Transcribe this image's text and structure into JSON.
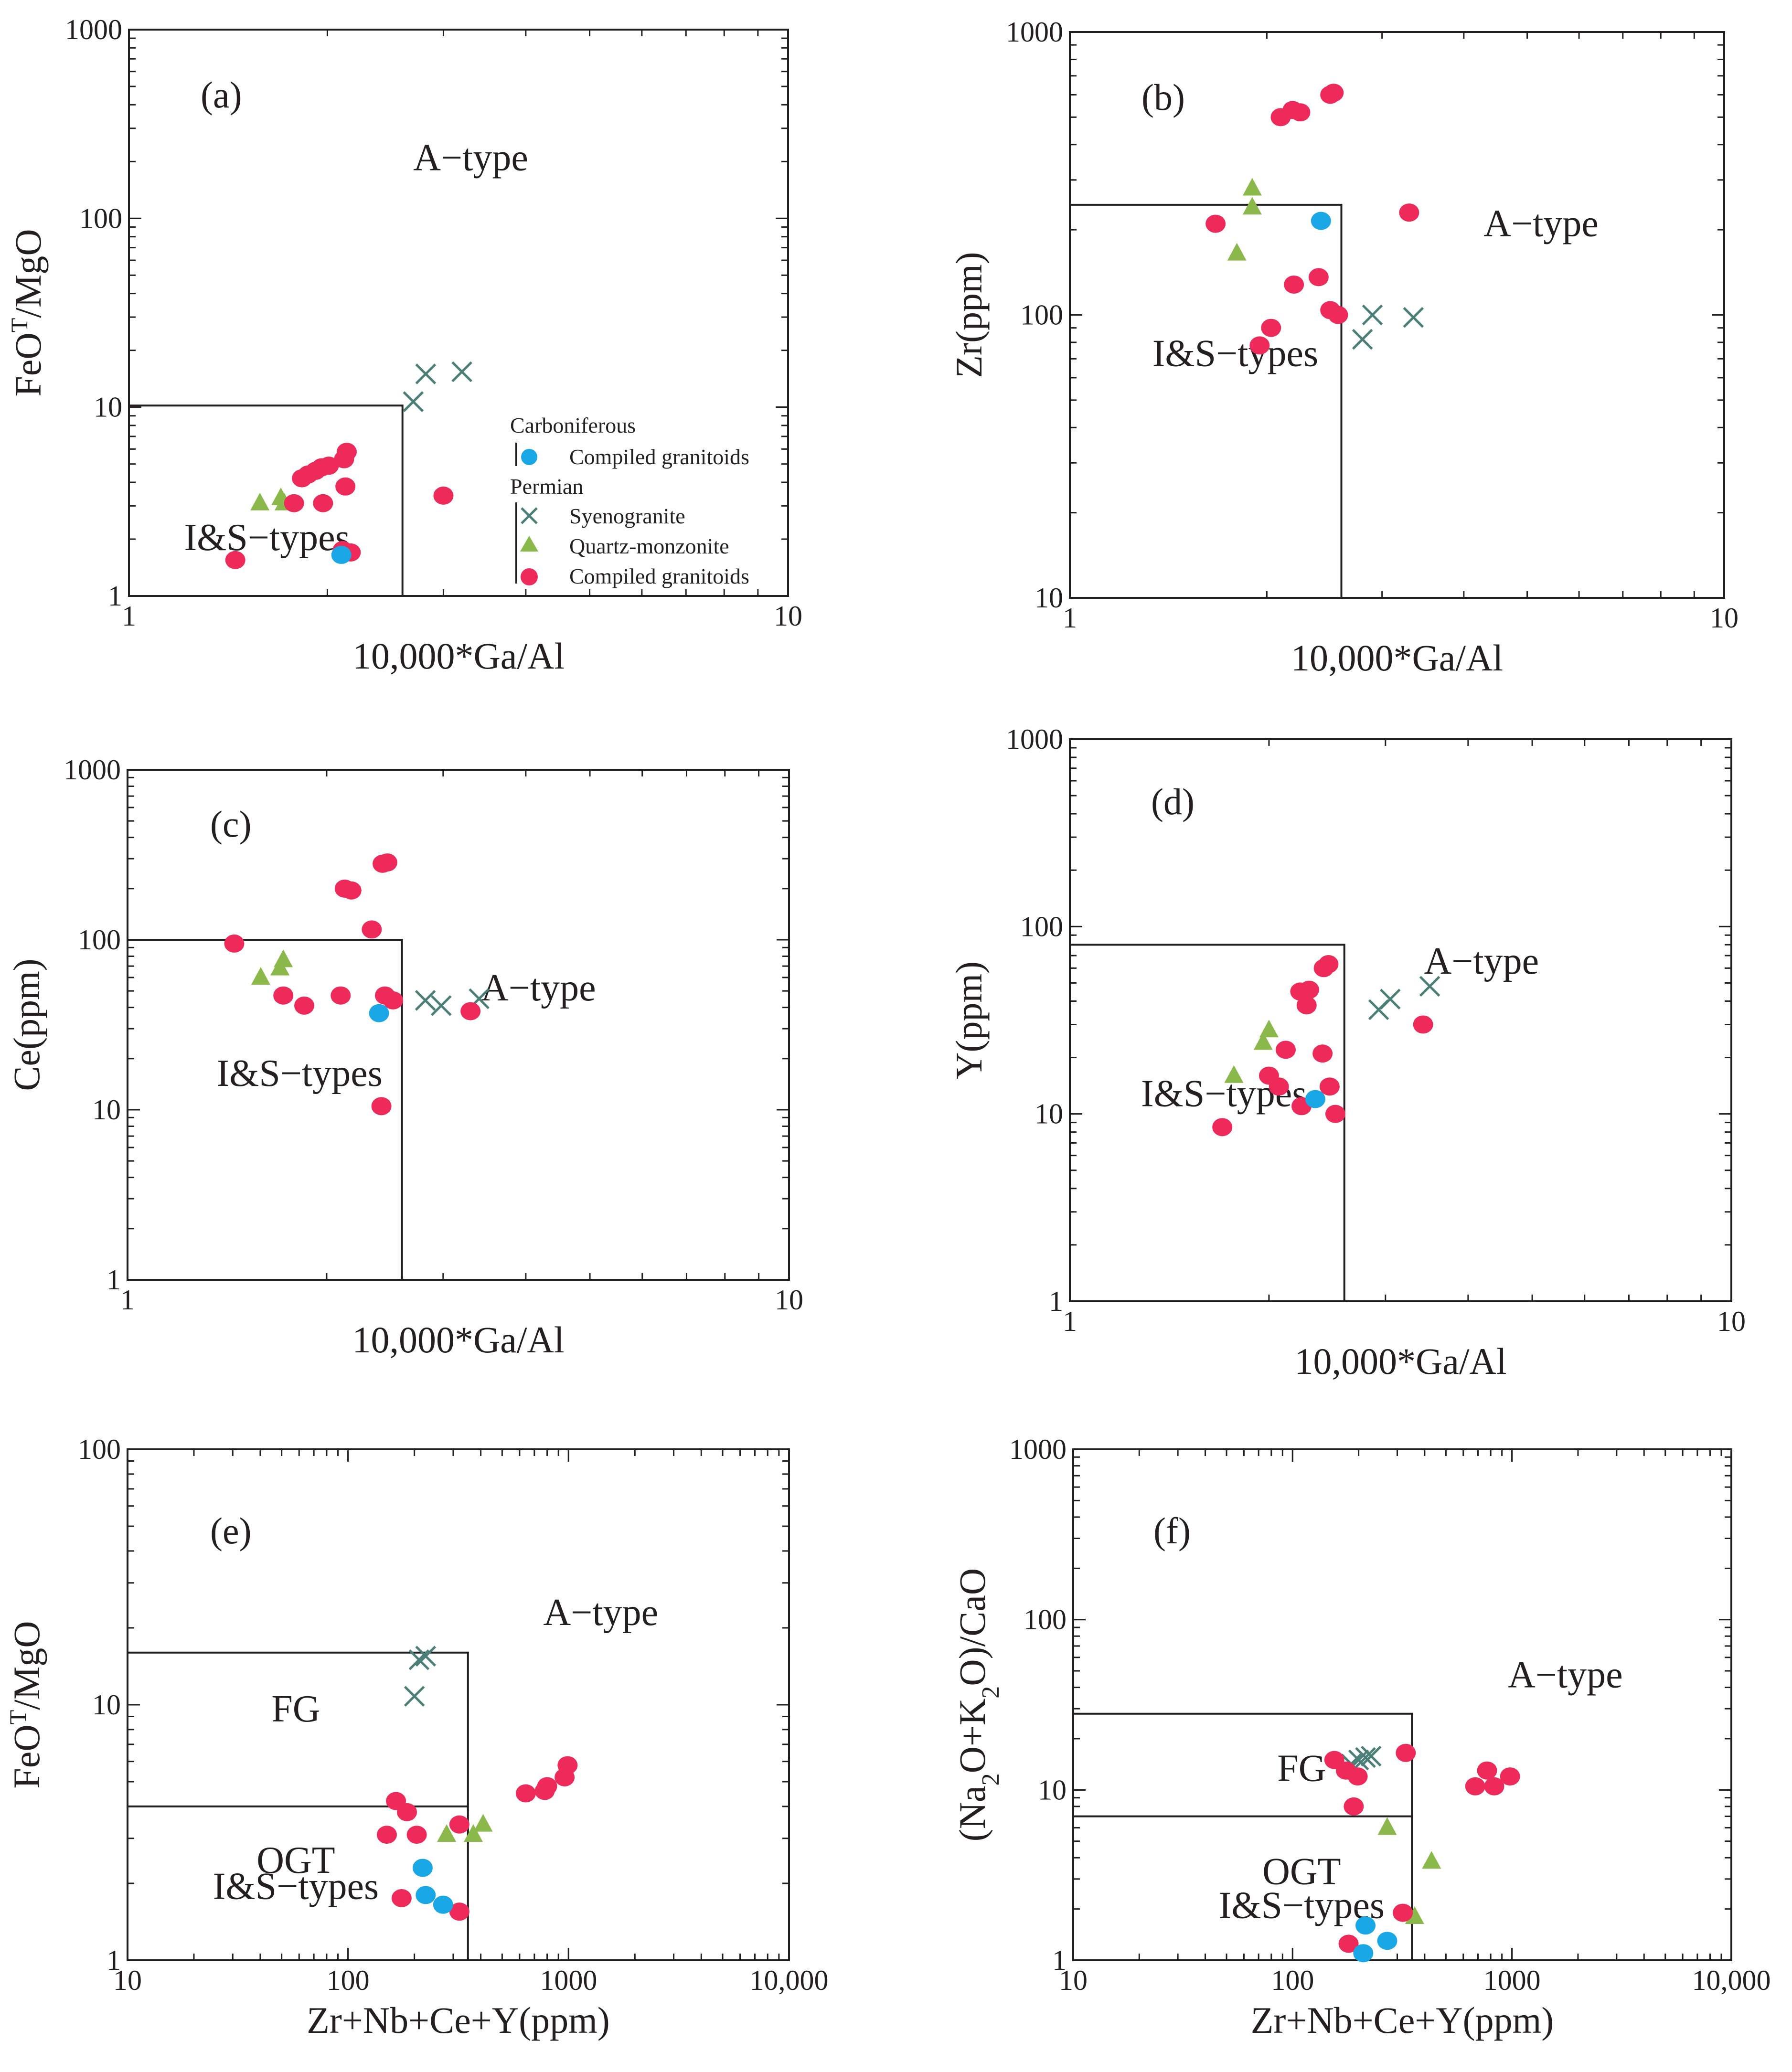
{
  "figure": {
    "legend": {
      "heading_carboniferous": "Carboniferous",
      "heading_permian": "Permian",
      "items": [
        {
          "label": "Compiled granitoids",
          "symbol": "circle",
          "group": "Carboniferous",
          "color": "#1aa7e6"
        },
        {
          "label": "Syenogranite",
          "symbol": "x",
          "group": "Permian",
          "color": "#4a7f77"
        },
        {
          "label": "Quartz-monzonite",
          "symbol": "triangle",
          "group": "Permian",
          "color": "#8ab84a"
        },
        {
          "label": "Compiled granitoids",
          "symbol": "circle",
          "group": "Permian",
          "color": "#ee2a5a"
        }
      ]
    },
    "colors": {
      "carboniferous": "#1aa7e6",
      "syenogranite": "#4a7f77",
      "quartz_monzonite": "#8ab84a",
      "permian_granitoids": "#ee2a5a",
      "axis": "#231f20"
    }
  },
  "chart_data": [
    {
      "id": "a",
      "type": "scatter",
      "title": "(a)",
      "xlog": true,
      "ylog": true,
      "xlim": [
        1,
        10
      ],
      "ylim": [
        1,
        1000
      ],
      "xticks": [
        {
          "v": 1,
          "label": "1"
        },
        {
          "v": 10,
          "label": "10"
        }
      ],
      "yticks": [
        {
          "v": 1,
          "label": "1"
        },
        {
          "v": 10,
          "label": "10"
        },
        {
          "v": 100,
          "label": "100"
        },
        {
          "v": 1000,
          "label": "1000"
        }
      ],
      "xlabel": "10,000*Ga/Al",
      "ylabel": "FeO",
      "ylabel_sup": "T",
      "ylabel_rest": "/MgO",
      "boundaries": [
        [
          [
            1,
            10.2
          ],
          [
            2.6,
            10.2
          ],
          [
            2.6,
            1
          ]
        ]
      ],
      "labels": [
        {
          "text": "A−type",
          "x": 3.3,
          "y": 180
        },
        {
          "text": "I&S−types",
          "x": 1.62,
          "y": 1.75
        }
      ],
      "series": [
        {
          "name": "Syenogranite",
          "points": [
            [
              2.7,
              10.7
            ],
            [
              2.82,
              15
            ],
            [
              3.2,
              15.4
            ]
          ]
        },
        {
          "name": "Quartz-monzonite",
          "points": [
            [
              1.58,
              3.1
            ],
            [
              1.7,
              3.3
            ],
            [
              1.72,
              3.1
            ]
          ]
        },
        {
          "name": "Permian compiled granitoids",
          "points": [
            [
              1.78,
              3.1
            ],
            [
              1.83,
              4.2
            ],
            [
              1.87,
              4.4
            ],
            [
              1.92,
              4.6
            ],
            [
              1.96,
              4.8
            ],
            [
              2.01,
              4.9
            ],
            [
              1.97,
              3.1
            ],
            [
              2.12,
              5.3
            ],
            [
              2.14,
              5.8
            ],
            [
              2.13,
              3.8
            ],
            [
              2.11,
              1.75
            ],
            [
              2.17,
              1.7
            ],
            [
              3.0,
              3.4
            ],
            [
              1.45,
              1.55
            ]
          ]
        },
        {
          "name": "Carboniferous compiled granitoids",
          "points": [
            [
              2.1,
              1.65
            ]
          ]
        }
      ]
    },
    {
      "id": "b",
      "type": "scatter",
      "title": "(b)",
      "xlog": true,
      "ylog": true,
      "xlim": [
        1,
        10
      ],
      "ylim": [
        10,
        1000
      ],
      "xticks": [
        {
          "v": 1,
          "label": "1"
        },
        {
          "v": 10,
          "label": "10"
        }
      ],
      "yticks": [
        {
          "v": 10,
          "label": "10"
        },
        {
          "v": 100,
          "label": "100"
        },
        {
          "v": 1000,
          "label": "1000"
        }
      ],
      "xlabel": "10,000*Ga/Al",
      "ylabel": "Zr(ppm)",
      "boundaries": [
        [
          [
            1,
            245
          ],
          [
            2.6,
            245
          ],
          [
            2.6,
            10
          ]
        ]
      ],
      "labels": [
        {
          "text": "A−type",
          "x": 5.25,
          "y": 190
        },
        {
          "text": "I&S−types",
          "x": 1.79,
          "y": 66
        }
      ],
      "series": [
        {
          "name": "Syenogranite",
          "points": [
            [
              2.8,
              82
            ],
            [
              2.9,
              100
            ],
            [
              3.35,
              98
            ]
          ]
        },
        {
          "name": "Quartz-monzonite",
          "points": [
            [
              1.8,
              165
            ],
            [
              1.9,
              240
            ],
            [
              1.9,
              280
            ]
          ]
        },
        {
          "name": "Permian compiled granitoids",
          "points": [
            [
              1.67,
              210
            ],
            [
              1.95,
              78
            ],
            [
              2.03,
              90
            ],
            [
              2.1,
              500
            ],
            [
              2.19,
              530
            ],
            [
              2.25,
              520
            ],
            [
              2.5,
              600
            ],
            [
              2.53,
              610
            ],
            [
              2.2,
              128
            ],
            [
              2.4,
              136
            ],
            [
              2.5,
              104
            ],
            [
              2.57,
              100
            ],
            [
              3.3,
              230
            ]
          ]
        },
        {
          "name": "Carboniferous compiled granitoids",
          "points": [
            [
              2.42,
              215
            ]
          ]
        }
      ]
    },
    {
      "id": "c",
      "type": "scatter",
      "title": "(c)",
      "xlog": true,
      "ylog": true,
      "xlim": [
        1,
        10
      ],
      "ylim": [
        1,
        1000
      ],
      "xticks": [
        {
          "v": 1,
          "label": "1"
        },
        {
          "v": 10,
          "label": "10"
        }
      ],
      "yticks": [
        {
          "v": 1,
          "label": "1"
        },
        {
          "v": 10,
          "label": "10"
        },
        {
          "v": 100,
          "label": "100"
        },
        {
          "v": 1000,
          "label": "1000"
        }
      ],
      "xlabel": "10,000*Ga/Al",
      "ylabel": "Ce(ppm)",
      "boundaries": [
        [
          [
            1,
            100
          ],
          [
            2.6,
            100
          ],
          [
            2.6,
            1
          ]
        ]
      ],
      "labels": [
        {
          "text": "A−type",
          "x": 4.18,
          "y": 44
        },
        {
          "text": "I&S−types",
          "x": 1.82,
          "y": 13.8
        }
      ],
      "series": [
        {
          "name": "Syenogranite",
          "points": [
            [
              2.82,
              44
            ],
            [
              2.98,
              41
            ],
            [
              3.4,
              45
            ]
          ]
        },
        {
          "name": "Quartz-monzonite",
          "points": [
            [
              1.59,
              60
            ],
            [
              1.7,
              68
            ],
            [
              1.72,
              76
            ]
          ]
        },
        {
          "name": "Permian compiled granitoids",
          "points": [
            [
              1.45,
              95
            ],
            [
              1.72,
              47
            ],
            [
              1.85,
              41
            ],
            [
              2.1,
              47
            ],
            [
              2.13,
              200
            ],
            [
              2.18,
              195
            ],
            [
              2.34,
              115
            ],
            [
              2.43,
              280
            ],
            [
              2.47,
              285
            ],
            [
              2.45,
              47
            ],
            [
              2.52,
              44
            ],
            [
              2.42,
              10.5
            ],
            [
              3.3,
              38
            ]
          ]
        },
        {
          "name": "Carboniferous compiled granitoids",
          "points": [
            [
              2.4,
              37
            ]
          ]
        }
      ]
    },
    {
      "id": "d",
      "type": "scatter",
      "title": "(d)",
      "xlog": true,
      "ylog": true,
      "xlim": [
        1,
        10
      ],
      "ylim": [
        1,
        1000
      ],
      "xticks": [
        {
          "v": 1,
          "label": "1"
        },
        {
          "v": 10,
          "label": "10"
        }
      ],
      "yticks": [
        {
          "v": 1,
          "label": "1"
        },
        {
          "v": 10,
          "label": "10"
        },
        {
          "v": 100,
          "label": "100"
        },
        {
          "v": 1000,
          "label": "1000"
        }
      ],
      "xlabel": "10,000*Ga/Al",
      "ylabel": "Y(ppm)",
      "boundaries": [
        [
          [
            1,
            80
          ],
          [
            2.6,
            80
          ],
          [
            2.6,
            1
          ]
        ]
      ],
      "labels": [
        {
          "text": "A−type",
          "x": 4.19,
          "y": 56
        },
        {
          "text": "I&S−types",
          "x": 1.71,
          "y": 11
        }
      ],
      "series": [
        {
          "name": "Syenogranite",
          "points": [
            [
              2.93,
              36
            ],
            [
              3.05,
              41
            ],
            [
              3.5,
              48
            ]
          ]
        },
        {
          "name": "Quartz-monzonite",
          "points": [
            [
              1.77,
              16
            ],
            [
              1.96,
              24
            ],
            [
              2.0,
              28
            ]
          ]
        },
        {
          "name": "Permian compiled granitoids",
          "points": [
            [
              1.7,
              8.5
            ],
            [
              2.0,
              16
            ],
            [
              2.07,
              14
            ],
            [
              2.12,
              22
            ],
            [
              2.23,
              45
            ],
            [
              2.3,
              46
            ],
            [
              2.28,
              38
            ],
            [
              2.24,
              11
            ],
            [
              2.42,
              60
            ],
            [
              2.46,
              63
            ],
            [
              2.41,
              21
            ],
            [
              2.47,
              14
            ],
            [
              2.52,
              10
            ],
            [
              3.42,
              30
            ]
          ]
        },
        {
          "name": "Carboniferous compiled granitoids",
          "points": [
            [
              2.35,
              12
            ]
          ]
        }
      ]
    },
    {
      "id": "e",
      "type": "scatter",
      "title": "(e)",
      "xlog": true,
      "ylog": true,
      "xlim": [
        10,
        10000
      ],
      "ylim": [
        1,
        100
      ],
      "xticks": [
        {
          "v": 10,
          "label": "10"
        },
        {
          "v": 100,
          "label": "100"
        },
        {
          "v": 1000,
          "label": "1000"
        },
        {
          "v": 10000,
          "label": "10,000"
        }
      ],
      "yticks": [
        {
          "v": 1,
          "label": "1"
        },
        {
          "v": 10,
          "label": "10"
        },
        {
          "v": 100,
          "label": "100"
        }
      ],
      "xlabel": "Zr+Nb+Ce+Y(ppm)",
      "ylabel": "FeO",
      "ylabel_sup": "T",
      "ylabel_rest": "/MgO",
      "boundaries": [
        [
          [
            10,
            16
          ],
          [
            350,
            16
          ],
          [
            350,
            1
          ]
        ],
        [
          [
            10,
            4
          ],
          [
            350,
            4
          ]
        ]
      ],
      "labels": [
        {
          "text": "A−type",
          "x": 1400,
          "y": 20.5
        },
        {
          "text": "FG",
          "x": 58,
          "y": 8.6
        },
        {
          "text": "OGT",
          "x": 58,
          "y": 2.2
        },
        {
          "text": "I&S−types",
          "x": 58,
          "y": 1.74
        }
      ],
      "series": [
        {
          "name": "Syenogranite",
          "points": [
            [
              200,
              10.8
            ],
            [
              210,
              15
            ],
            [
              225,
              15.5
            ]
          ]
        },
        {
          "name": "Quartz-monzonite",
          "points": [
            [
              280,
              3.1
            ],
            [
              370,
              3.1
            ],
            [
              410,
              3.4
            ]
          ]
        },
        {
          "name": "Permian compiled granitoids",
          "points": [
            [
              150,
              3.1
            ],
            [
              165,
              4.2
            ],
            [
              185,
              3.8
            ],
            [
              205,
              3.1
            ],
            [
              175,
              1.75
            ],
            [
              320,
              3.4
            ],
            [
              640,
              4.5
            ],
            [
              780,
              4.6
            ],
            [
              800,
              4.8
            ],
            [
              960,
              5.2
            ],
            [
              990,
              5.8
            ],
            [
              320,
              1.55
            ]
          ]
        },
        {
          "name": "Carboniferous compiled granitoids",
          "points": [
            [
              218,
              2.3
            ],
            [
              225,
              1.8
            ],
            [
              270,
              1.65
            ]
          ]
        }
      ]
    },
    {
      "id": "f",
      "type": "scatter",
      "title": "(f)",
      "xlog": true,
      "ylog": true,
      "xlim": [
        10,
        10000
      ],
      "ylim": [
        1,
        1000
      ],
      "xticks": [
        {
          "v": 10,
          "label": "10"
        },
        {
          "v": 100,
          "label": "100"
        },
        {
          "v": 1000,
          "label": "1000"
        },
        {
          "v": 10000,
          "label": "10,000"
        }
      ],
      "yticks": [
        {
          "v": 1,
          "label": "1"
        },
        {
          "v": 10,
          "label": "10"
        },
        {
          "v": 100,
          "label": "100"
        },
        {
          "v": 1000,
          "label": "1000"
        }
      ],
      "xlabel": "Zr+Nb+Ce+Y(ppm)",
      "ylabel": "(Na",
      "ylabel_parts": [
        "(Na",
        "2",
        "O+K",
        "2",
        "O)/CaO"
      ],
      "boundaries": [
        [
          [
            10,
            28
          ],
          [
            350,
            28
          ],
          [
            350,
            1
          ]
        ],
        [
          [
            10,
            7
          ],
          [
            350,
            7
          ]
        ]
      ],
      "labels": [
        {
          "text": "A−type",
          "x": 1750,
          "y": 40
        },
        {
          "text": "FG",
          "x": 110,
          "y": 11.3
        },
        {
          "text": "OGT",
          "x": 110,
          "y": 2.8
        },
        {
          "text": "I&S−types",
          "x": 110,
          "y": 1.77
        }
      ],
      "series": [
        {
          "name": "Syenogranite",
          "points": [
            [
              185,
              14.2
            ],
            [
              200,
              15
            ],
            [
              215,
              15.5
            ],
            [
              228,
              15.8
            ]
          ]
        },
        {
          "name": "Quartz-monzonite",
          "points": [
            [
              270,
              6
            ],
            [
              360,
              1.8
            ],
            [
              430,
              3.8
            ]
          ]
        },
        {
          "name": "Permian compiled granitoids",
          "points": [
            [
              155,
              15
            ],
            [
              175,
              13
            ],
            [
              190,
              8
            ],
            [
              198,
              12
            ],
            [
              180,
              1.25
            ],
            [
              318,
              1.9
            ],
            [
              328,
              16.5
            ],
            [
              680,
              10.5
            ],
            [
              770,
              13
            ],
            [
              830,
              10.5
            ],
            [
              980,
              12
            ]
          ]
        },
        {
          "name": "Carboniferous compiled granitoids",
          "points": [
            [
              210,
              1.1
            ],
            [
              215,
              1.6
            ],
            [
              270,
              1.3
            ]
          ]
        }
      ]
    }
  ]
}
